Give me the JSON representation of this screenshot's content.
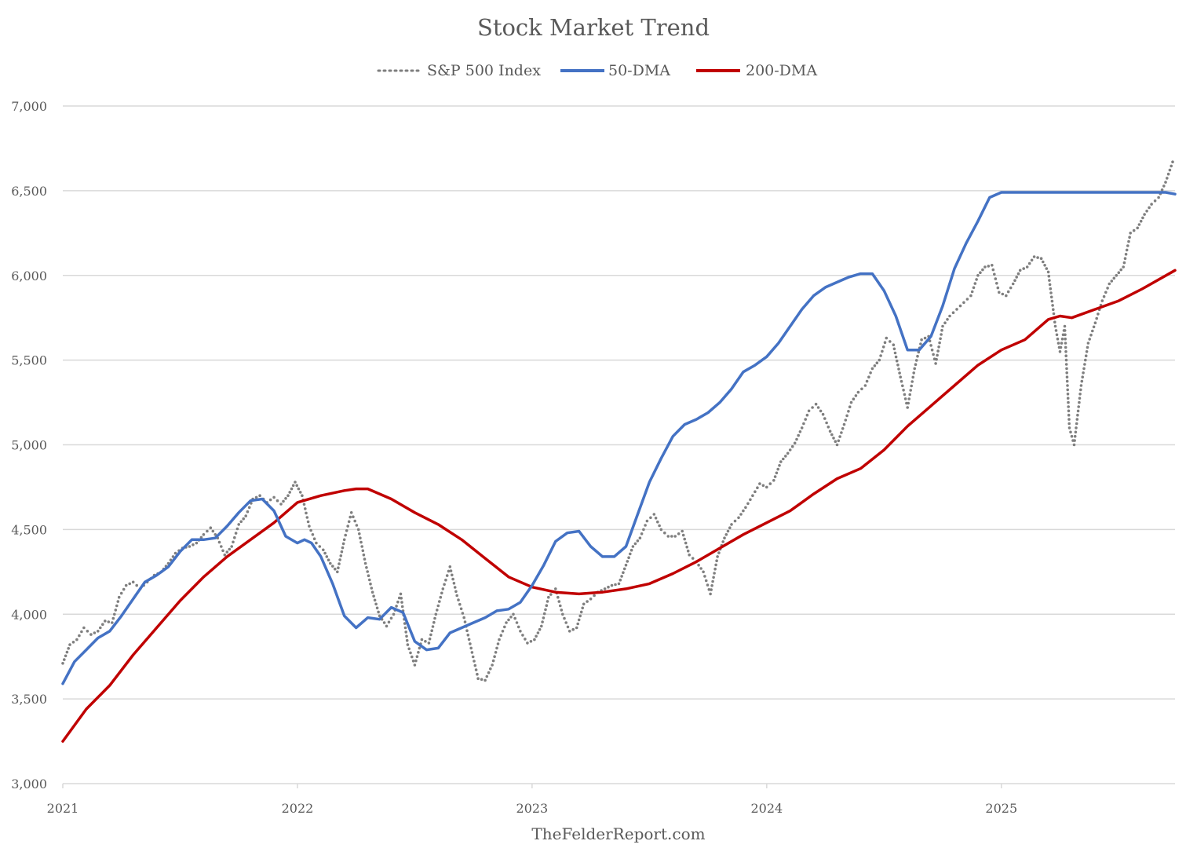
{
  "chart_data": {
    "type": "line",
    "title": "Stock Market Trend",
    "xlabel": "",
    "ylabel": "",
    "source": "TheFelderReport.com",
    "legend_position": "top-center",
    "grid": "horizontal",
    "xlim": [
      2021.0,
      2025.74
    ],
    "ylim": [
      3000,
      7000
    ],
    "x_ticks": [
      2021,
      2022,
      2023,
      2024,
      2025
    ],
    "x_tick_labels": [
      "2021",
      "2022",
      "2023",
      "2024",
      "2025"
    ],
    "y_ticks": [
      3000,
      3500,
      4000,
      4500,
      5000,
      5500,
      6000,
      6500,
      7000
    ],
    "y_tick_labels": [
      "3,000",
      "3,500",
      "4,000",
      "4,500",
      "5,000",
      "5,500",
      "6,000",
      "6,500",
      "7,000"
    ],
    "series": [
      {
        "name": "S&P 500 Index",
        "color": "#7f7f7f",
        "style": "dotted",
        "x": [
          2021.0,
          2021.03,
          2021.06,
          2021.09,
          2021.12,
          2021.15,
          2021.18,
          2021.21,
          2021.24,
          2021.27,
          2021.3,
          2021.33,
          2021.36,
          2021.39,
          2021.42,
          2021.45,
          2021.48,
          2021.51,
          2021.54,
          2021.57,
          2021.6,
          2021.63,
          2021.66,
          2021.69,
          2021.72,
          2021.75,
          2021.78,
          2021.81,
          2021.84,
          2021.87,
          2021.9,
          2021.93,
          2021.96,
          2021.99,
          2022.02,
          2022.05,
          2022.08,
          2022.11,
          2022.14,
          2022.17,
          2022.2,
          2022.23,
          2022.26,
          2022.29,
          2022.32,
          2022.35,
          2022.38,
          2022.41,
          2022.44,
          2022.47,
          2022.5,
          2022.53,
          2022.56,
          2022.59,
          2022.62,
          2022.65,
          2022.68,
          2022.71,
          2022.74,
          2022.77,
          2022.8,
          2022.83,
          2022.86,
          2022.89,
          2022.92,
          2022.95,
          2022.98,
          2023.01,
          2023.04,
          2023.07,
          2023.1,
          2023.13,
          2023.16,
          2023.19,
          2023.22,
          2023.25,
          2023.28,
          2023.31,
          2023.34,
          2023.37,
          2023.4,
          2023.43,
          2023.46,
          2023.49,
          2023.52,
          2023.55,
          2023.58,
          2023.61,
          2023.64,
          2023.67,
          2023.7,
          2023.73,
          2023.76,
          2023.79,
          2023.82,
          2023.85,
          2023.88,
          2023.91,
          2023.94,
          2023.97,
          2024.0,
          2024.03,
          2024.06,
          2024.09,
          2024.12,
          2024.15,
          2024.18,
          2024.21,
          2024.24,
          2024.27,
          2024.3,
          2024.33,
          2024.36,
          2024.39,
          2024.42,
          2024.45,
          2024.48,
          2024.51,
          2024.54,
          2024.57,
          2024.6,
          2024.63,
          2024.66,
          2024.69,
          2024.72,
          2024.75,
          2024.78,
          2024.81,
          2024.84,
          2024.87,
          2024.9,
          2024.93,
          2024.96,
          2024.99,
          2025.02,
          2025.05,
          2025.08,
          2025.11,
          2025.14,
          2025.17,
          2025.2,
          2025.23,
          2025.25,
          2025.27,
          2025.29,
          2025.31,
          2025.34,
          2025.37,
          2025.4,
          2025.43,
          2025.46,
          2025.49,
          2025.52,
          2025.55,
          2025.58,
          2025.61,
          2025.64,
          2025.67,
          2025.7,
          2025.73
        ],
        "values": [
          3710,
          3820,
          3850,
          3920,
          3880,
          3900,
          3960,
          3950,
          4100,
          4170,
          4190,
          4150,
          4190,
          4230,
          4250,
          4300,
          4360,
          4390,
          4400,
          4420,
          4470,
          4510,
          4450,
          4350,
          4400,
          4530,
          4580,
          4680,
          4700,
          4660,
          4690,
          4650,
          4700,
          4780,
          4700,
          4520,
          4420,
          4380,
          4300,
          4250,
          4440,
          4600,
          4500,
          4300,
          4130,
          3990,
          3930,
          4000,
          4120,
          3820,
          3700,
          3850,
          3830,
          4000,
          4150,
          4280,
          4110,
          3980,
          3800,
          3620,
          3610,
          3700,
          3850,
          3950,
          4000,
          3900,
          3830,
          3850,
          3930,
          4100,
          4150,
          4000,
          3900,
          3920,
          4060,
          4090,
          4130,
          4150,
          4170,
          4180,
          4290,
          4400,
          4450,
          4550,
          4590,
          4500,
          4460,
          4460,
          4490,
          4350,
          4310,
          4250,
          4120,
          4340,
          4450,
          4530,
          4570,
          4630,
          4700,
          4770,
          4750,
          4790,
          4900,
          4950,
          5010,
          5100,
          5200,
          5240,
          5180,
          5080,
          5000,
          5120,
          5250,
          5310,
          5350,
          5450,
          5500,
          5630,
          5590,
          5400,
          5220,
          5450,
          5620,
          5640,
          5480,
          5700,
          5760,
          5800,
          5840,
          5880,
          6000,
          6050,
          6060,
          5900,
          5880,
          5950,
          6030,
          6050,
          6110,
          6100,
          6020,
          5700,
          5550,
          5700,
          5100,
          5000,
          5350,
          5600,
          5720,
          5850,
          5950,
          6000,
          6050,
          6250,
          6280,
          6360,
          6420,
          6460,
          6550,
          6670
        ]
      },
      {
        "name": "50-DMA",
        "color": "#4472c4",
        "style": "solid",
        "x": [
          2021.0,
          2021.05,
          2021.1,
          2021.15,
          2021.2,
          2021.25,
          2021.3,
          2021.35,
          2021.4,
          2021.45,
          2021.5,
          2021.55,
          2021.6,
          2021.65,
          2021.7,
          2021.75,
          2021.8,
          2021.85,
          2021.9,
          2021.95,
          2022.0,
          2022.03,
          2022.06,
          2022.1,
          2022.15,
          2022.2,
          2022.25,
          2022.3,
          2022.35,
          2022.4,
          2022.45,
          2022.5,
          2022.55,
          2022.6,
          2022.65,
          2022.7,
          2022.75,
          2022.8,
          2022.85,
          2022.9,
          2022.95,
          2023.0,
          2023.05,
          2023.1,
          2023.15,
          2023.2,
          2023.25,
          2023.3,
          2023.35,
          2023.4,
          2023.45,
          2023.5,
          2023.55,
          2023.6,
          2023.65,
          2023.7,
          2023.75,
          2023.8,
          2023.85,
          2023.9,
          2023.95,
          2024.0,
          2024.05,
          2024.1,
          2024.15,
          2024.2,
          2024.25,
          2024.3,
          2024.35,
          2024.4,
          2024.45,
          2024.5,
          2024.55,
          2024.6,
          2024.65,
          2024.7,
          2024.75,
          2024.8,
          2024.85,
          2024.9,
          2024.95,
          2025.0,
          2025.05,
          2025.1,
          2025.15,
          2025.2,
          2025.25,
          2025.3,
          2025.35,
          2025.4,
          2025.45,
          2025.5,
          2025.55,
          2025.6,
          2025.65,
          2025.7,
          2025.74
        ],
        "values": [
          3590,
          3720,
          3790,
          3860,
          3900,
          3990,
          4090,
          4190,
          4230,
          4280,
          4370,
          4440,
          4440,
          4450,
          4520,
          4600,
          4670,
          4680,
          4610,
          4460,
          4420,
          4440,
          4420,
          4340,
          4180,
          3990,
          3920,
          3980,
          3970,
          4040,
          4010,
          3840,
          3790,
          3800,
          3890,
          3920,
          3950,
          3980,
          4020,
          4030,
          4070,
          4170,
          4290,
          4430,
          4480,
          4490,
          4400,
          4340,
          4340,
          4400,
          4590,
          4780,
          4920,
          5050,
          5120,
          5150,
          5190,
          5250,
          5330,
          5430,
          5470,
          5520,
          5600,
          5700,
          5800,
          5880,
          5930,
          5960,
          5990,
          6010,
          6010,
          5910,
          5760,
          5560,
          5560,
          5640,
          5820,
          6040,
          6190,
          6320,
          6460,
          6490,
          6490,
          6490,
          6490,
          6490,
          6490,
          6490,
          6490,
          6490,
          6490,
          6490,
          6490,
          6490,
          6490,
          6490,
          6480
        ]
      },
      {
        "name": "200-DMA",
        "color": "#c00000",
        "style": "solid",
        "x": [
          2021.0,
          2021.1,
          2021.2,
          2021.3,
          2021.4,
          2021.5,
          2021.6,
          2021.7,
          2021.8,
          2021.9,
          2022.0,
          2022.1,
          2022.2,
          2022.25,
          2022.3,
          2022.4,
          2022.5,
          2022.6,
          2022.7,
          2022.8,
          2022.9,
          2023.0,
          2023.1,
          2023.2,
          2023.3,
          2023.4,
          2023.5,
          2023.6,
          2023.7,
          2023.8,
          2023.9,
          2024.0,
          2024.1,
          2024.2,
          2024.3,
          2024.4,
          2024.5,
          2024.6,
          2024.7,
          2024.8,
          2024.9,
          2025.0,
          2025.1,
          2025.15,
          2025.2,
          2025.25,
          2025.3,
          2025.4,
          2025.5,
          2025.6,
          2025.74
        ],
        "values": [
          3250,
          3440,
          3580,
          3760,
          3920,
          4080,
          4220,
          4340,
          4440,
          4540,
          4660,
          4700,
          4730,
          4740,
          4740,
          4680,
          4600,
          4530,
          4440,
          4330,
          4220,
          4160,
          4130,
          4120,
          4130,
          4150,
          4180,
          4240,
          4310,
          4390,
          4470,
          4540,
          4610,
          4710,
          4800,
          4860,
          4970,
          5110,
          5230,
          5350,
          5470,
          5560,
          5620,
          5680,
          5740,
          5760,
          5750,
          5800,
          5850,
          5920,
          6030
        ]
      }
    ]
  }
}
